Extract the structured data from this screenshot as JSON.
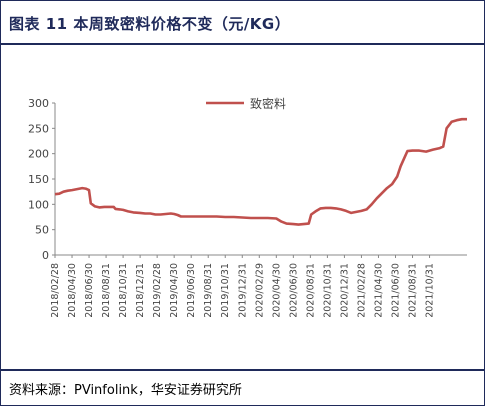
{
  "figure": {
    "title": "图表 11 本周致密料价格不变（元/KG）",
    "source": "资料来源：PVinfolink，华安证券研究所"
  },
  "chart_data": {
    "type": "line",
    "line_color": "#c0504d",
    "ylim": [
      0,
      300
    ],
    "yticks": [
      0,
      50,
      100,
      150,
      200,
      250,
      300
    ],
    "legend_position": "top",
    "grid": false,
    "x_tick_labels": [
      "2018/02/28",
      "2018/04/30",
      "2018/06/30",
      "2018/08/31",
      "2018/10/31",
      "2018/12/31",
      "2019/02/28",
      "2019/04/30",
      "2019/06/30",
      "2019/08/31",
      "2019/10/31",
      "2019/12/31",
      "2020/02/29",
      "2020/04/30",
      "2020/06/30",
      "2020/08/31",
      "2020/10/31",
      "2020/12/31",
      "2021/02/28",
      "2021/04/30",
      "2021/06/30",
      "2021/08/31",
      "2021/10/31"
    ],
    "series": [
      {
        "name": "致密料",
        "points": [
          [
            0,
            120
          ],
          [
            0.25,
            121
          ],
          [
            0.5,
            125
          ],
          [
            0.75,
            127
          ],
          [
            1,
            128
          ],
          [
            1.3,
            130
          ],
          [
            1.6,
            132
          ],
          [
            1.8,
            131
          ],
          [
            2,
            128
          ],
          [
            2.1,
            102
          ],
          [
            2.35,
            96
          ],
          [
            2.6,
            94
          ],
          [
            2.9,
            95
          ],
          [
            3.2,
            95
          ],
          [
            3.45,
            95
          ],
          [
            3.55,
            91
          ],
          [
            3.8,
            90
          ],
          [
            4,
            89
          ],
          [
            4.3,
            86
          ],
          [
            4.6,
            84
          ],
          [
            5,
            83
          ],
          [
            5.3,
            82
          ],
          [
            5.6,
            82
          ],
          [
            5.9,
            80
          ],
          [
            6.2,
            80
          ],
          [
            6.5,
            81
          ],
          [
            6.8,
            82
          ],
          [
            7,
            81
          ],
          [
            7.2,
            79
          ],
          [
            7.4,
            76
          ],
          [
            7.7,
            76
          ],
          [
            8,
            76
          ],
          [
            8.5,
            76
          ],
          [
            9,
            76
          ],
          [
            9.5,
            76
          ],
          [
            10,
            75
          ],
          [
            10.5,
            75
          ],
          [
            11,
            74
          ],
          [
            11.5,
            73
          ],
          [
            12,
            73
          ],
          [
            12.5,
            73
          ],
          [
            13,
            72
          ],
          [
            13.3,
            66
          ],
          [
            13.6,
            62
          ],
          [
            14,
            61
          ],
          [
            14.3,
            60
          ],
          [
            14.6,
            61
          ],
          [
            14.9,
            62
          ],
          [
            15.05,
            80
          ],
          [
            15.3,
            86
          ],
          [
            15.6,
            92
          ],
          [
            15.9,
            93
          ],
          [
            16.2,
            93
          ],
          [
            16.5,
            92
          ],
          [
            16.8,
            90
          ],
          [
            17.1,
            87
          ],
          [
            17.4,
            83
          ],
          [
            17.7,
            85
          ],
          [
            18,
            87
          ],
          [
            18.3,
            90
          ],
          [
            18.6,
            100
          ],
          [
            18.9,
            112
          ],
          [
            19.2,
            122
          ],
          [
            19.5,
            132
          ],
          [
            19.8,
            140
          ],
          [
            20.1,
            155
          ],
          [
            20.3,
            175
          ],
          [
            20.5,
            190
          ],
          [
            20.7,
            205
          ],
          [
            21,
            206
          ],
          [
            21.4,
            206
          ],
          [
            21.8,
            204
          ],
          [
            22.2,
            208
          ],
          [
            22.6,
            211
          ],
          [
            22.8,
            214
          ],
          [
            23,
            250
          ],
          [
            23.3,
            263
          ],
          [
            23.6,
            266
          ],
          [
            23.9,
            268
          ],
          [
            24.2,
            268
          ]
        ]
      }
    ]
  }
}
